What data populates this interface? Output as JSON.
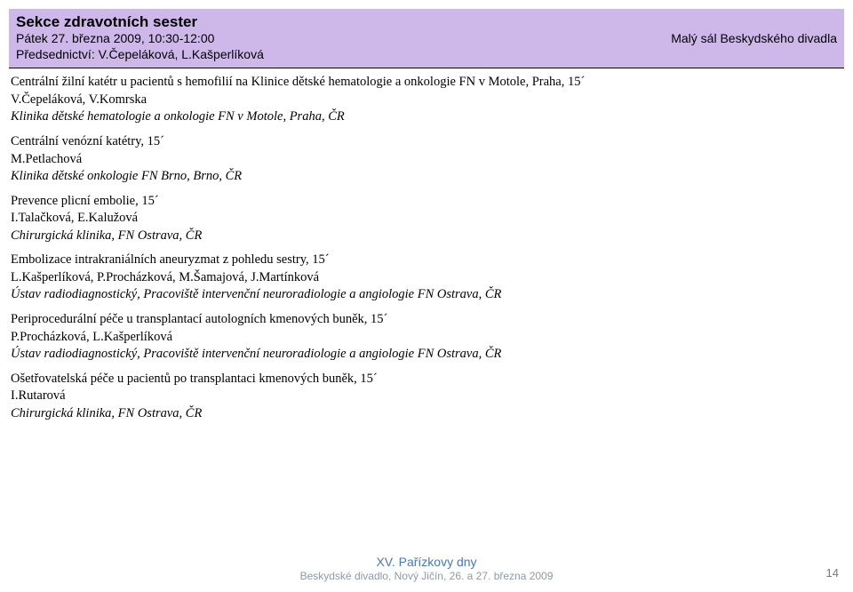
{
  "header": {
    "section_title": "Sekce zdravotních sester",
    "datetime": "Pátek 27. března 2009, 10:30-12:00",
    "chairs_label": "Předsednictví: V.Čepeláková, L.Kašperlíková",
    "location": "Malý sál Beskydského divadla",
    "bg_color": "#cdb8e9"
  },
  "talks": [
    {
      "title": "Centrální žilní katétr u pacientů s hemofilií na Klinice dětské hematologie a onkologie FN v Motole, Praha, 15´",
      "authors": "V.Čepeláková, V.Komrska",
      "affil": "Klinika dětské hematologie a onkologie FN v Motole, Praha, ČR"
    },
    {
      "title": "Centrální venózní katétry, 15´",
      "authors": "M.Petlachová",
      "affil": "Klinika dětské onkologie FN Brno, Brno, ČR"
    },
    {
      "title": "Prevence plicní embolie, 15´",
      "authors": "I.Talačková, E.Kalužová",
      "affil": "Chirurgická klinika, FN Ostrava, ČR"
    },
    {
      "title": "Embolizace intrakraniálních aneuryzmat z pohledu sestry, 15´",
      "authors": "L.Kašperlíková, P.Procházková, M.Šamajová, J.Martínková",
      "affil": "Ústav radiodiagnostický, Pracoviště intervenční neuroradiologie a angiologie FN Ostrava, ČR"
    },
    {
      "title": "Periprocedurální péče u transplantací autologních kmenových buněk, 15´",
      "authors": "P.Procházková, L.Kašperlíková",
      "affil": "Ústav radiodiagnostický, Pracoviště intervenční neuroradiologie a angiologie FN Ostrava, ČR"
    },
    {
      "title": "Ošetřovatelská péče u pacientů po transplantaci kmenových buněk, 15´",
      "authors": "I.Rutarová",
      "affil": "Chirurgická klinika, FN Ostrava, ČR"
    }
  ],
  "footer": {
    "top": "XV. Pařízkovy dny",
    "bottom": "Beskydské divadlo, Nový Jičín, 26. a 27. března 2009",
    "page_number": "14",
    "top_color": "#4679b7",
    "bottom_color": "#8c9aaa"
  }
}
